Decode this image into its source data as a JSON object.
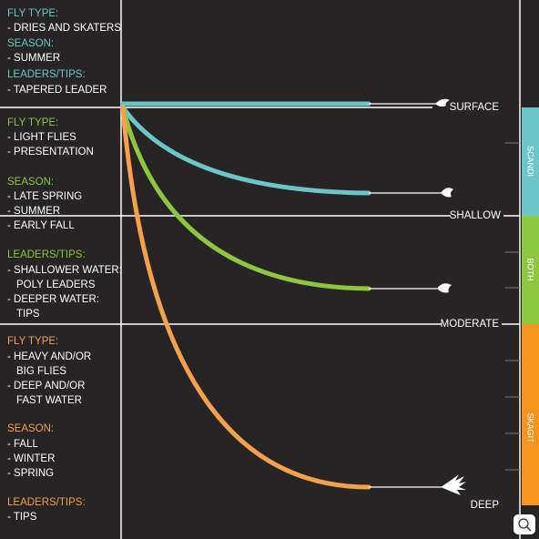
{
  "sections": [
    {
      "groups": [
        {
          "heading": "FLY TYPE:",
          "lines": [
            "- DRIES AND SKATERS"
          ]
        },
        {
          "heading": "SEASON:",
          "lines": [
            "- SUMMER"
          ]
        },
        {
          "heading": "LEADERS/TIPS:",
          "lines": [
            "- TAPERED LEADER"
          ]
        }
      ]
    },
    {
      "groups": [
        {
          "heading": "FLY TYPE:",
          "lines": [
            "- LIGHT FLIES",
            "- PRESENTATION"
          ]
        },
        {
          "heading": "SEASON:",
          "lines": [
            "- LATE SPRING",
            "- SUMMER",
            "- EARLY FALL"
          ]
        },
        {
          "heading": "LEADERS/TIPS:",
          "lines": [
            "- SHALLOWER WATER:",
            "POLY LEADERS",
            "- DEEPER WATER:",
            "TIPS"
          ]
        }
      ]
    },
    {
      "groups": [
        {
          "heading": "FLY TYPE:",
          "lines": [
            "- HEAVY AND/OR",
            "BIG FLIES",
            "- DEEP AND/OR",
            "FAST WATER"
          ]
        },
        {
          "heading": "SEASON:",
          "lines": [
            "- FALL",
            "- WINTER",
            "- SPRING"
          ]
        },
        {
          "heading": "LEADERS/TIPS:",
          "lines": [
            "- TIPS"
          ]
        }
      ]
    }
  ],
  "depths": [
    "SURFACE",
    "SHALLOW",
    "MODERATE",
    "DEEP"
  ],
  "line_types": [
    "SCANDI",
    "BOTH",
    "SKAGIT"
  ]
}
